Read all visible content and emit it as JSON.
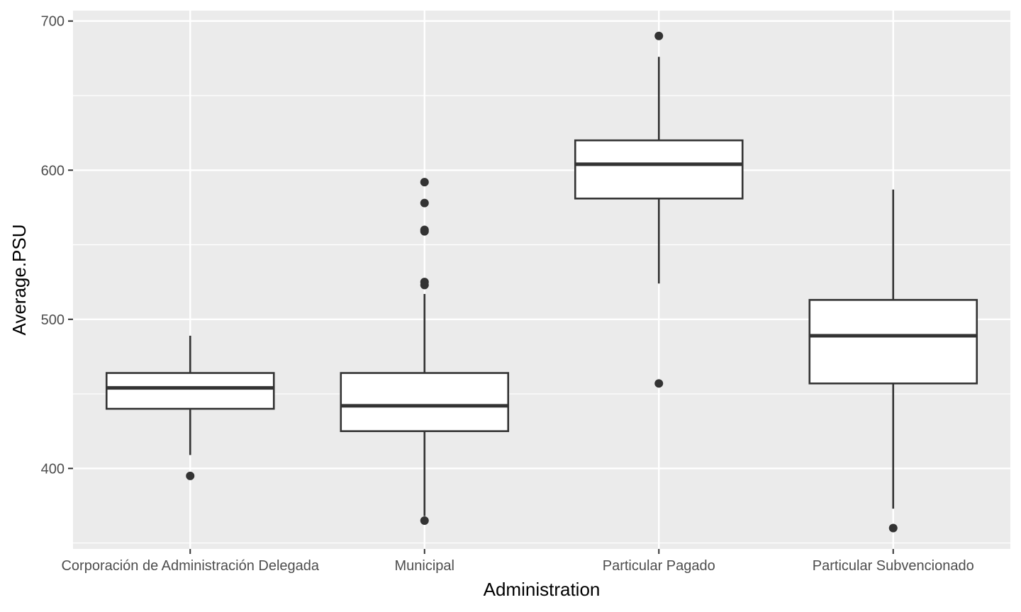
{
  "chart_data": {
    "type": "box",
    "xlabel": "Administration",
    "ylabel": "Average.PSU",
    "ylim": [
      346,
      707
    ],
    "y_ticks": [
      400,
      500,
      600,
      700
    ],
    "y_minor_ticks": [
      350,
      450,
      550,
      650
    ],
    "grid": true,
    "colors": {
      "panel_background": "#ebebeb",
      "grid_line": "#ffffff",
      "box_fill": "#ffffff",
      "box_stroke": "#333333",
      "outlier": "#333333",
      "tick_label": "#4d4d4d"
    },
    "categories": [
      "Corporación de Administración Delegada",
      "Municipal",
      "Particular Pagado",
      "Particular Subvencionado"
    ],
    "boxes": [
      {
        "category": "Corporación de Administración Delegada",
        "whisker_low": 409,
        "q1": 440,
        "median": 454,
        "q3": 464,
        "whisker_high": 489,
        "outliers": [
          395
        ]
      },
      {
        "category": "Municipal",
        "whisker_low": 368,
        "q1": 425,
        "median": 442,
        "q3": 464,
        "whisker_high": 517,
        "outliers": [
          365,
          523,
          525,
          559,
          560,
          578,
          592
        ]
      },
      {
        "category": "Particular Pagado",
        "whisker_low": 524,
        "q1": 581,
        "median": 604,
        "q3": 620,
        "whisker_high": 676,
        "outliers": [
          457,
          690
        ]
      },
      {
        "category": "Particular Subvencionado",
        "whisker_low": 373,
        "q1": 457,
        "median": 489,
        "q3": 513,
        "whisker_high": 587,
        "outliers": [
          360
        ]
      }
    ]
  }
}
